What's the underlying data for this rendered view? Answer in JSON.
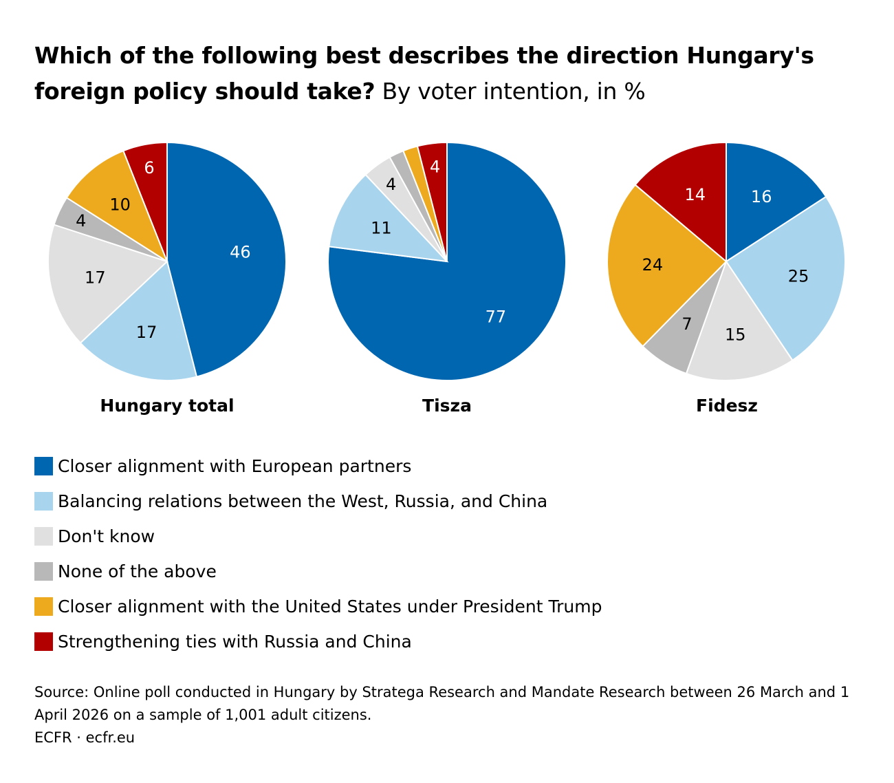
{
  "title": {
    "bold": "Which of the following best describes the direction Hungary's foreign policy should take?",
    "subtitle": "By voter intention, in %"
  },
  "legend": [
    {
      "label": "Closer alignment with European partners",
      "color": "#0066b0"
    },
    {
      "label": "Balancing relations between the West, Russia, and China",
      "color": "#a8d4ee"
    },
    {
      "label": "Don't know",
      "color": "#e0e0e0"
    },
    {
      "label": "None of the above",
      "color": "#b8b8b8"
    },
    {
      "label": "Closer alignment with the United States under President Trump",
      "color": "#eeaa1e"
    },
    {
      "label": "Strengthening ties with Russia and China",
      "color": "#b20000"
    }
  ],
  "chart_data": [
    {
      "type": "pie",
      "title": "Hungary total",
      "categories": [
        "Closer alignment with European partners",
        "Balancing relations between the West, Russia, and China",
        "Don't know",
        "None of the above",
        "Closer alignment with the United States under President Trump",
        "Strengthening ties with Russia and China"
      ],
      "values": [
        46,
        17,
        17,
        4,
        10,
        6
      ],
      "labels": [
        "46",
        "17",
        "17",
        "4",
        "10",
        "6"
      ]
    },
    {
      "type": "pie",
      "title": "Tisza",
      "categories": [
        "Closer alignment with European partners",
        "Balancing relations between the West, Russia, and China",
        "Don't know",
        "None of the above",
        "Closer alignment with the United States under President Trump",
        "Strengthening ties with Russia and China"
      ],
      "values": [
        77,
        11,
        4,
        2,
        2,
        4
      ],
      "labels": [
        "77",
        "11",
        "4",
        "",
        "",
        "4"
      ]
    },
    {
      "type": "pie",
      "title": "Fidesz",
      "categories": [
        "Closer alignment with European partners",
        "Balancing relations between the West, Russia, and China",
        "Don't know",
        "None of the above",
        "Closer alignment with the United States under President Trump",
        "Strengthening ties with Russia and China"
      ],
      "values": [
        16,
        25,
        15,
        7,
        24,
        14
      ],
      "labels": [
        "16",
        "25",
        "15",
        "7",
        "24",
        "14"
      ]
    }
  ],
  "source": {
    "line": "Source: Online poll conducted in Hungary by Stratega Research and Mandate Research between 26 March and 1 April 2026 on a sample of 1,001 adult citizens.",
    "credit": "ECFR · ecfr.eu"
  }
}
